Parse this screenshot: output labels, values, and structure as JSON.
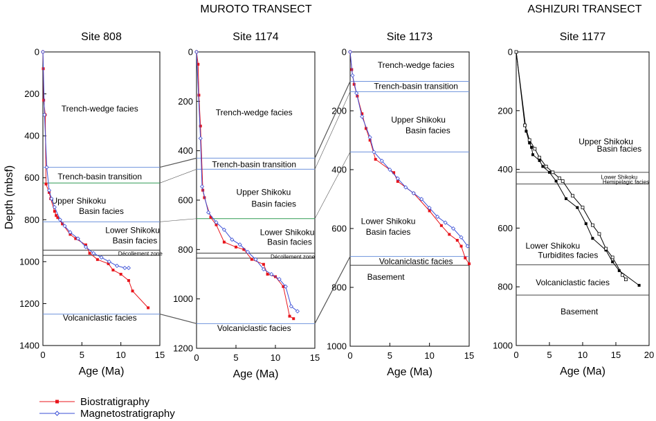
{
  "transect_titles": [
    "MUROTO TRANSECT",
    "ASHIZURI TRANSECT"
  ],
  "y_axis_label": "Depth (mbsf)",
  "legend": [
    {
      "name": "Biostratigraphy",
      "color": "#e8141b",
      "marker": "filled-square"
    },
    {
      "name": "Magnetostratigraphy",
      "color": "#3a4fd6",
      "marker": "open-diamond"
    }
  ],
  "colors": {
    "bio": "#e8141b",
    "mag": "#3a4fd6",
    "boundary_blue": "#6e92dc",
    "boundary_green": "#2f9a52",
    "boundary_black": "#333333",
    "correlation": "#555555"
  },
  "chart_data": [
    {
      "type": "line",
      "title": "Site 808",
      "xlabel": "Age (Ma)",
      "ylabel": "Depth (mbsf)",
      "xlim": [
        0,
        15
      ],
      "ylim": [
        1400,
        0
      ],
      "xticks": [
        0,
        5,
        10,
        15
      ],
      "yticks": [
        0,
        200,
        400,
        600,
        800,
        1000,
        1200,
        1400
      ],
      "series": [
        {
          "name": "Biostratigraphy",
          "points": [
            [
              0,
              0
            ],
            [
              0.05,
              80
            ],
            [
              0.1,
              230
            ],
            [
              0.3,
              300
            ],
            [
              0.4,
              630
            ],
            [
              0.8,
              670
            ],
            [
              1.0,
              700
            ],
            [
              1.5,
              760
            ],
            [
              1.7,
              780
            ],
            [
              1.9,
              790
            ],
            [
              2.5,
              820
            ],
            [
              3.5,
              870
            ],
            [
              4.2,
              890
            ],
            [
              5.5,
              920
            ],
            [
              6,
              960
            ],
            [
              7,
              990
            ],
            [
              8.4,
              1010
            ],
            [
              9,
              1040
            ],
            [
              10,
              1060
            ],
            [
              11,
              1090
            ],
            [
              11.5,
              1140
            ],
            [
              13.5,
              1220
            ]
          ]
        },
        {
          "name": "Magnetostratigraphy",
          "points": [
            [
              0,
              0
            ],
            [
              0.2,
              300
            ],
            [
              0.5,
              550
            ],
            [
              0.8,
              660
            ],
            [
              1.1,
              700
            ],
            [
              1.5,
              740
            ],
            [
              2.2,
              800
            ],
            [
              2.8,
              830
            ],
            [
              3.5,
              860
            ],
            [
              4.5,
              890
            ],
            [
              5.5,
              930
            ],
            [
              6.5,
              960
            ],
            [
              7.5,
              980
            ],
            [
              8.5,
              1000
            ],
            [
              9.5,
              1020
            ],
            [
              10.5,
              1030
            ],
            [
              11,
              1030
            ]
          ]
        }
      ],
      "boundaries": [
        {
          "depth": 550,
          "color": "blue"
        },
        {
          "depth": 625,
          "color": "green"
        },
        {
          "depth": 810,
          "color": "blue"
        },
        {
          "depth": 945,
          "color": "black"
        },
        {
          "depth": 970,
          "color": "black"
        },
        {
          "depth": 1250,
          "color": "blue"
        }
      ],
      "labels": [
        {
          "text": "Trench-wedge facies",
          "x": 7.3,
          "depth": 270
        },
        {
          "text": "Trench-basin transition",
          "x": 7.3,
          "depth": 595
        },
        {
          "text": "Upper Shikoku",
          "x": 4.6,
          "depth": 710
        },
        {
          "text": "Basin facies",
          "x": 7.5,
          "depth": 760
        },
        {
          "text": "Lower Shikoku",
          "x": 11.5,
          "depth": 850
        },
        {
          "text": "Basin facies",
          "x": 11.8,
          "depth": 900
        },
        {
          "text": "Décollement zone",
          "x": 12.5,
          "depth": 958,
          "small": true
        },
        {
          "text": "Volcaniclastic facies",
          "x": 7.3,
          "depth": 1268
        }
      ]
    },
    {
      "type": "line",
      "title": "Site 1174",
      "xlabel": "Age (Ma)",
      "ylabel": "",
      "xlim": [
        0,
        15
      ],
      "ylim": [
        1200,
        0
      ],
      "xticks": [
        0,
        5,
        10,
        15
      ],
      "yticks": [
        0,
        200,
        400,
        600,
        800,
        1000,
        1200
      ],
      "series": [
        {
          "name": "Biostratigraphy",
          "points": [
            [
              0,
              0
            ],
            [
              0.2,
              50
            ],
            [
              0.3,
              175
            ],
            [
              0.5,
              300
            ],
            [
              0.8,
              560
            ],
            [
              1,
              590
            ],
            [
              1.8,
              670
            ],
            [
              2.5,
              700
            ],
            [
              3.5,
              770
            ],
            [
              5,
              790
            ],
            [
              6,
              800
            ],
            [
              7,
              840
            ],
            [
              8.5,
              860
            ],
            [
              9,
              900
            ],
            [
              10,
              910
            ],
            [
              11,
              950
            ],
            [
              11.8,
              1070
            ],
            [
              12.3,
              1080
            ]
          ]
        },
        {
          "name": "Magnetostratigraphy",
          "points": [
            [
              0,
              0
            ],
            [
              0.5,
              350
            ],
            [
              0.7,
              545
            ],
            [
              1.5,
              650
            ],
            [
              2.5,
              690
            ],
            [
              3.5,
              720
            ],
            [
              4.5,
              760
            ],
            [
              5.5,
              780
            ],
            [
              6.5,
              810
            ],
            [
              7.5,
              840
            ],
            [
              8.5,
              880
            ],
            [
              9.5,
              900
            ],
            [
              10.5,
              920
            ],
            [
              11.3,
              950
            ],
            [
              12,
              1030
            ],
            [
              12.8,
              1050
            ]
          ]
        }
      ],
      "boundaries": [
        {
          "depth": 430,
          "color": "blue"
        },
        {
          "depth": 475,
          "color": "blue"
        },
        {
          "depth": 675,
          "color": "green"
        },
        {
          "depth": 815,
          "color": "black"
        },
        {
          "depth": 835,
          "color": "black"
        },
        {
          "depth": 1100,
          "color": "blue"
        }
      ],
      "labels": [
        {
          "text": "Trench-wedge facies",
          "x": 7.3,
          "depth": 245
        },
        {
          "text": "Trench-basin transition",
          "x": 7.3,
          "depth": 455
        },
        {
          "text": "Upper Shikoku",
          "x": 8.5,
          "depth": 568
        },
        {
          "text": "Basin facies",
          "x": 9.8,
          "depth": 615
        },
        {
          "text": "Lower Shikoku",
          "x": 11.5,
          "depth": 730
        },
        {
          "text": "Basin facies",
          "x": 11.8,
          "depth": 770
        },
        {
          "text": "Décollement zone",
          "x": 12.2,
          "depth": 826,
          "small": true
        },
        {
          "text": "Volcaniclastic facies",
          "x": 7.3,
          "depth": 1118
        }
      ]
    },
    {
      "type": "line",
      "title": "Site 1173",
      "xlabel": "Age (Ma)",
      "ylabel": "",
      "xlim": [
        0,
        15
      ],
      "ylim": [
        1000,
        0
      ],
      "xticks": [
        0,
        5,
        10,
        15
      ],
      "yticks": [
        0,
        200,
        400,
        600,
        800,
        1000
      ],
      "series": [
        {
          "name": "Biostratigraphy",
          "points": [
            [
              0,
              0
            ],
            [
              0.2,
              60
            ],
            [
              0.5,
              110
            ],
            [
              0.9,
              150
            ],
            [
              1.5,
              210
            ],
            [
              2,
              260
            ],
            [
              2.5,
              300
            ],
            [
              3.2,
              365
            ],
            [
              5.5,
              410
            ],
            [
              6,
              440
            ],
            [
              8,
              480
            ],
            [
              10,
              540
            ],
            [
              11.5,
              590
            ],
            [
              12.5,
              620
            ],
            [
              13.5,
              640
            ],
            [
              14,
              660
            ],
            [
              14.5,
              700
            ],
            [
              15,
              720
            ]
          ]
        },
        {
          "name": "Magnetostratigraphy",
          "points": [
            [
              0,
              0
            ],
            [
              0.3,
              80
            ],
            [
              0.8,
              140
            ],
            [
              1.5,
              220
            ],
            [
              2.5,
              290
            ],
            [
              3,
              340
            ],
            [
              4,
              370
            ],
            [
              5,
              400
            ],
            [
              6,
              430
            ],
            [
              7,
              460
            ],
            [
              8,
              480
            ],
            [
              9,
              500
            ],
            [
              10,
              530
            ],
            [
              11,
              560
            ],
            [
              12,
              580
            ],
            [
              13,
              600
            ],
            [
              14,
              630
            ],
            [
              14.8,
              660
            ]
          ]
        }
      ],
      "boundaries": [
        {
          "depth": 100,
          "color": "blue"
        },
        {
          "depth": 135,
          "color": "blue"
        },
        {
          "depth": 340,
          "color": "blue"
        },
        {
          "depth": 695,
          "color": "blue"
        },
        {
          "depth": 725,
          "color": "black"
        }
      ],
      "labels": [
        {
          "text": "Trench-wedge facies",
          "x": 8.3,
          "depth": 45
        },
        {
          "text": "Trench-basin transition",
          "x": 8.3,
          "depth": 117
        },
        {
          "text": "Upper Shikoku",
          "x": 8.6,
          "depth": 230
        },
        {
          "text": "Basin facies",
          "x": 9.8,
          "depth": 267
        },
        {
          "text": "Lower Shikoku",
          "x": 4.8,
          "depth": 575
        },
        {
          "text": "Basin facies",
          "x": 4.8,
          "depth": 612
        },
        {
          "text": "Volcaniclastic facies",
          "x": 8.3,
          "depth": 712
        },
        {
          "text": "Basement",
          "x": 4.5,
          "depth": 765
        }
      ]
    },
    {
      "type": "line",
      "title": "Site 1177",
      "xlabel": "Age (Ma)",
      "ylabel": "",
      "xlim": [
        0,
        20
      ],
      "ylim": [
        1000,
        0
      ],
      "xticks": [
        0,
        5,
        10,
        15,
        20
      ],
      "yticks": [
        0,
        200,
        400,
        600,
        800,
        1000
      ],
      "series": [
        {
          "name": "Biostratigraphy",
          "marker": "filled-square",
          "color": "#000000",
          "points": [
            [
              0,
              0
            ],
            [
              1.5,
              270
            ],
            [
              2,
              310
            ],
            [
              2.3,
              325
            ],
            [
              2.5,
              350
            ],
            [
              3.5,
              370
            ],
            [
              4,
              390
            ],
            [
              5,
              410
            ],
            [
              6,
              440
            ],
            [
              7.5,
              500
            ],
            [
              9.2,
              530
            ],
            [
              10.5,
              585
            ],
            [
              11.5,
              635
            ],
            [
              13.5,
              675
            ],
            [
              14.5,
              715
            ],
            [
              15.5,
              745
            ],
            [
              18.5,
              795
            ]
          ]
        },
        {
          "name": "Magnetostratigraphy",
          "marker": "open-square",
          "color": "#000000",
          "points": [
            [
              0,
              0
            ],
            [
              1.3,
              250
            ],
            [
              2,
              300
            ],
            [
              2.8,
              330
            ],
            [
              3.5,
              360
            ],
            [
              4.5,
              390
            ],
            [
              5.5,
              410
            ],
            [
              6.5,
              430
            ],
            [
              7,
              440
            ],
            [
              8.5,
              490
            ],
            [
              10,
              530
            ],
            [
              11.5,
              590
            ],
            [
              12.5,
              620
            ],
            [
              13.5,
              670
            ],
            [
              14.5,
              700
            ],
            [
              16,
              760
            ],
            [
              16.5,
              775
            ]
          ]
        }
      ],
      "boundaries": [
        {
          "depth": 410,
          "color": "dark"
        },
        {
          "depth": 450,
          "color": "dark"
        },
        {
          "depth": 725,
          "color": "dark"
        },
        {
          "depth": 828,
          "color": "dark"
        }
      ],
      "labels": [
        {
          "text": "Upper Shikoku",
          "x": 13.5,
          "depth": 305
        },
        {
          "text": "Basin facies",
          "x": 15.5,
          "depth": 330
        },
        {
          "text": "Lower Shikoku",
          "x": 15.5,
          "depth": 423,
          "small": true
        },
        {
          "text": "Hemipelagic facies",
          "x": 16.5,
          "depth": 440,
          "small": true
        },
        {
          "text": "Lower Shikoku",
          "x": 5.5,
          "depth": 660
        },
        {
          "text": "Turbidites facies",
          "x": 7.8,
          "depth": 692
        },
        {
          "text": "Volcaniclastic facies",
          "x": 8.5,
          "depth": 785
        },
        {
          "text": "Basement",
          "x": 9.5,
          "depth": 885
        }
      ]
    }
  ]
}
